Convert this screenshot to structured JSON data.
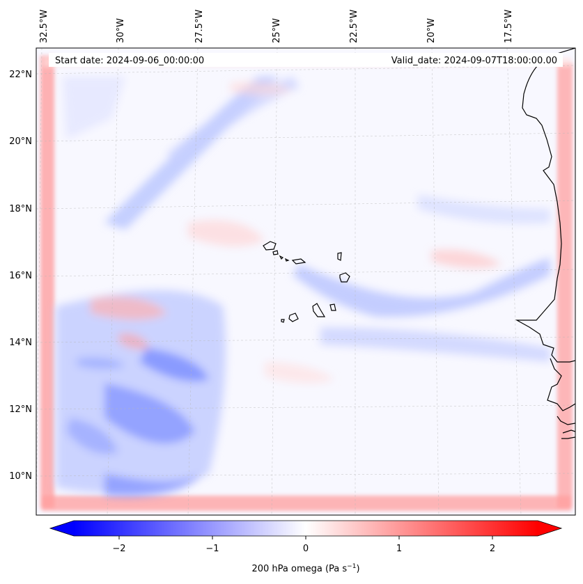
{
  "header": {
    "start_date": "Start date: 2024-09-06_00:00:00",
    "valid_date": "Valid_date: 2024-09-07T18:00:00.00"
  },
  "map": {
    "longitude_labels": [
      "32.5°W",
      "30°W",
      "27.5°W",
      "25°W",
      "22.5°W",
      "20°W",
      "17.5°W"
    ],
    "latitude_labels": [
      "22°N",
      "20°N",
      "18°N",
      "16°N",
      "14°N",
      "12°N",
      "10°N"
    ],
    "field": "200 hPa omega",
    "features": [
      "coastline-west-africa",
      "cape-verde-islands"
    ]
  },
  "colorbar": {
    "label_text": "200 hPa omega (Pa s",
    "label_sup": "−1",
    "label_close": ")",
    "ticks": [
      "−2",
      "−1",
      "0",
      "1",
      "2"
    ],
    "range": [
      -2.75,
      2.75
    ],
    "colors": {
      "min": "#0000ff",
      "mid": "#ffffff",
      "max": "#ff0000"
    },
    "extend": "both"
  }
}
